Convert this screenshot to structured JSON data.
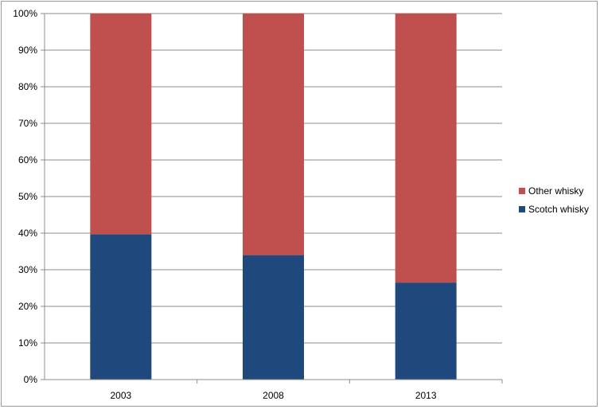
{
  "chart_data": {
    "type": "bar",
    "stacked": true,
    "percent_stacked": true,
    "categories": [
      "2003",
      "2008",
      "2013"
    ],
    "series": [
      {
        "name": "Scotch whisky",
        "values": [
          39.7,
          34.0,
          26.5
        ],
        "color": "#1f497d"
      },
      {
        "name": "Other whisky",
        "values": [
          60.3,
          66.0,
          73.5
        ],
        "color": "#c0504d"
      }
    ],
    "yticks": [
      "0%",
      "10%",
      "20%",
      "30%",
      "40%",
      "50%",
      "60%",
      "70%",
      "80%",
      "90%",
      "100%"
    ],
    "ylim": [
      0,
      100
    ],
    "grid": true,
    "legend_position": "right",
    "legend_order": [
      "Other whisky",
      "Scotch whisky"
    ]
  }
}
